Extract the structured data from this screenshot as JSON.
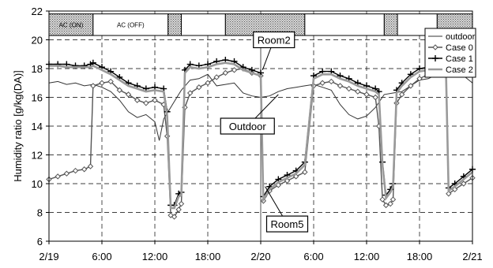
{
  "chart_data": {
    "type": "line",
    "xlabel": "",
    "ylabel": "Humidity ratio [g/kg(DA)]",
    "ylim": [
      6,
      22
    ],
    "yticks": [
      6,
      8,
      10,
      12,
      14,
      16,
      18,
      20,
      22
    ],
    "xlim": [
      0,
      48
    ],
    "xticks": [
      {
        "h": 0,
        "label": "2/19"
      },
      {
        "h": 6,
        "label": "6:00"
      },
      {
        "h": 12,
        "label": "12:00"
      },
      {
        "h": 18,
        "label": "18:00"
      },
      {
        "h": 24,
        "label": "2/20"
      },
      {
        "h": 30,
        "label": "6:00"
      },
      {
        "h": 36,
        "label": "12:00"
      },
      {
        "h": 42,
        "label": "18:00"
      },
      {
        "h": 48,
        "label": "2/21"
      }
    ],
    "ac_bar": {
      "label_on": "AC (ON)",
      "label_off": "AC (OFF)",
      "segments": [
        {
          "start": 0,
          "end": 5,
          "state": "on",
          "label": "AC (ON)"
        },
        {
          "start": 5,
          "end": 13.5,
          "state": "off",
          "label": "AC (OFF)"
        },
        {
          "start": 13.5,
          "end": 15,
          "state": "on",
          "label": ""
        },
        {
          "start": 15,
          "end": 20,
          "state": "off",
          "label": ""
        },
        {
          "start": 20,
          "end": 29,
          "state": "on",
          "label": ""
        },
        {
          "start": 29,
          "end": 38,
          "state": "off",
          "label": ""
        },
        {
          "start": 38,
          "end": 39.5,
          "state": "on",
          "label": ""
        },
        {
          "start": 39.5,
          "end": 44,
          "state": "off",
          "label": ""
        },
        {
          "start": 44,
          "end": 48,
          "state": "on",
          "label": ""
        }
      ]
    },
    "series": [
      {
        "name": "outdoor",
        "style": "thin",
        "color": "#333333",
        "x": [
          0,
          1,
          2,
          3,
          4,
          5,
          6,
          7,
          8,
          9,
          10,
          11,
          12,
          12.5,
          13,
          14,
          15,
          16,
          17,
          18,
          19,
          20,
          21,
          22,
          23,
          24,
          25,
          26,
          27,
          28,
          29,
          30,
          31,
          32,
          33,
          34,
          35,
          36,
          37,
          38,
          39,
          40,
          41,
          42,
          43,
          44,
          45,
          46,
          47,
          48
        ],
        "y": [
          17.0,
          17.1,
          16.9,
          17.0,
          16.8,
          16.9,
          16.7,
          16.4,
          15.8,
          15.0,
          14.6,
          14.8,
          14.3,
          13.0,
          14.5,
          15.5,
          16.5,
          17.2,
          17.3,
          17.6,
          16.8,
          16.9,
          17.0,
          16.3,
          16.1,
          16.0,
          16.1,
          16.4,
          16.6,
          16.7,
          16.8,
          16.9,
          16.7,
          16.5,
          15.5,
          14.8,
          14.5,
          14.7,
          15.3,
          16.2,
          16.3,
          16.4,
          16.8,
          17.2,
          17.3,
          17.6,
          18.0,
          17.9,
          17.5,
          17.0
        ]
      },
      {
        "name": "Case 0",
        "style": "diamond",
        "color": "#555555",
        "x": [
          0,
          1,
          2,
          3,
          4,
          4.7,
          5,
          6,
          7,
          8,
          9,
          10,
          11,
          12,
          13,
          13.4,
          13.8,
          14.2,
          14.7,
          15,
          15.4,
          16,
          17,
          18,
          19,
          20,
          21,
          22,
          23,
          24,
          24.3,
          25,
          26,
          27,
          28,
          29,
          30,
          31,
          32,
          33,
          34,
          35,
          36,
          37,
          37.4,
          37.8,
          38.2,
          38.7,
          39,
          39.4,
          40,
          41,
          42,
          43,
          44,
          45,
          45.3,
          46,
          47,
          48
        ],
        "y": [
          10.3,
          10.5,
          10.7,
          10.9,
          11.0,
          11.2,
          16.8,
          17.0,
          17.1,
          16.5,
          16.2,
          15.8,
          15.6,
          15.8,
          15.5,
          13.3,
          7.8,
          7.7,
          8.2,
          8.6,
          15.3,
          16.3,
          16.7,
          17.0,
          17.4,
          17.7,
          17.9,
          18.0,
          17.7,
          17.5,
          8.8,
          9.5,
          9.9,
          10.2,
          10.5,
          10.8,
          16.8,
          17.0,
          17.1,
          16.8,
          16.6,
          16.4,
          16.2,
          16.0,
          14.0,
          8.9,
          8.5,
          8.6,
          8.9,
          15.6,
          16.2,
          16.8,
          17.3,
          17.6,
          17.8,
          17.6,
          9.3,
          9.6,
          10.0,
          10.4
        ]
      },
      {
        "name": "Case 1",
        "style": "plus",
        "color": "#000000",
        "x": [
          0,
          1,
          2,
          3,
          4,
          4.7,
          5,
          6,
          7,
          8,
          9,
          10,
          11,
          12,
          13,
          13.4,
          13.8,
          14.2,
          14.7,
          15,
          15.4,
          16,
          17,
          18,
          19,
          20,
          21,
          22,
          23,
          24,
          24.3,
          25,
          26,
          27,
          28,
          29,
          30,
          31,
          32,
          33,
          34,
          35,
          36,
          37,
          37.4,
          37.8,
          38.2,
          38.7,
          39,
          39.4,
          40,
          41,
          42,
          43,
          44,
          45,
          45.3,
          46,
          47,
          48
        ],
        "y": [
          18.3,
          18.3,
          18.3,
          18.2,
          18.2,
          18.3,
          18.4,
          18.1,
          17.8,
          17.4,
          17.0,
          16.8,
          16.6,
          16.7,
          16.6,
          15.0,
          8.5,
          8.5,
          9.3,
          9.4,
          17.9,
          18.3,
          18.2,
          18.3,
          18.5,
          18.6,
          18.5,
          18.1,
          17.9,
          17.7,
          9.1,
          9.8,
          10.3,
          10.6,
          10.9,
          11.5,
          17.5,
          17.8,
          17.8,
          17.5,
          17.3,
          17.0,
          16.8,
          16.6,
          16.4,
          11.5,
          9.2,
          9.6,
          10.0,
          16.5,
          17.0,
          17.6,
          18.0,
          18.1,
          18.2,
          18.0,
          9.7,
          10.0,
          10.5,
          11.0
        ]
      },
      {
        "name": "Case 2",
        "style": "thick",
        "color": "#9a9a9a",
        "x": [
          0,
          1,
          2,
          3,
          4,
          4.7,
          5,
          6,
          7,
          8,
          9,
          10,
          11,
          12,
          13,
          13.4,
          13.8,
          14.2,
          14.7,
          15,
          15.4,
          16,
          17,
          18,
          19,
          20,
          21,
          22,
          23,
          24,
          24.3,
          25,
          26,
          27,
          28,
          29,
          30,
          31,
          32,
          33,
          34,
          35,
          36,
          37,
          37.4,
          37.8,
          38.2,
          38.7,
          39,
          39.4,
          40,
          41,
          42,
          43,
          44,
          45,
          45.3,
          46,
          47,
          48
        ],
        "y": [
          18.2,
          18.2,
          18.1,
          18.1,
          18.1,
          18.1,
          18.2,
          17.9,
          17.6,
          17.2,
          16.8,
          16.6,
          16.4,
          16.5,
          16.4,
          14.7,
          8.3,
          8.3,
          9.1,
          9.2,
          17.7,
          18.1,
          18.0,
          18.1,
          18.3,
          18.4,
          18.3,
          17.9,
          17.7,
          17.5,
          8.9,
          9.6,
          10.1,
          10.4,
          10.7,
          11.3,
          17.3,
          17.6,
          17.6,
          17.3,
          17.1,
          16.8,
          16.6,
          16.4,
          16.2,
          11.3,
          9.0,
          9.4,
          9.8,
          16.3,
          16.8,
          17.4,
          17.8,
          17.9,
          18.0,
          17.8,
          9.5,
          9.8,
          10.3,
          10.8
        ]
      }
    ],
    "annotations": [
      {
        "text": "Room2",
        "x": 25.5,
        "y": 20.0,
        "tx": 24.2,
        "ty": 17.9
      },
      {
        "text": "Outdoor",
        "x": 22.5,
        "y": 14.0,
        "tx": 26.0,
        "ty": 16.2
      },
      {
        "text": "Room5",
        "x": 27.0,
        "y": 7.2,
        "tx": 24.5,
        "ty": 9.8
      }
    ],
    "legend": {
      "placement": "top-right",
      "entries": [
        "outdoor",
        "Case 0",
        "Case 1",
        "Case 2"
      ]
    },
    "grid": true
  }
}
